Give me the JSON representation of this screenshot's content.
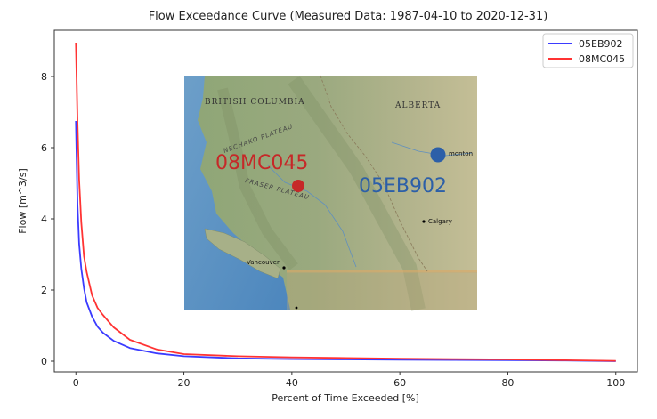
{
  "chart_data": {
    "type": "line",
    "title": "Flow Exceedance Curve (Measured Data: 1987-04-10 to 2020-12-31)",
    "xlabel": "Percent of Time Exceeded [%]",
    "ylabel": "Flow [m^3/s]",
    "xlim": [
      -4,
      104
    ],
    "ylim": [
      -0.3,
      9.3
    ],
    "xticks": [
      0,
      20,
      40,
      60,
      80,
      100
    ],
    "yticks": [
      0,
      2,
      4,
      6,
      8
    ],
    "grid": false,
    "legend": "top-right",
    "series": [
      {
        "name": "05EB902",
        "color": "#3b3bff",
        "x": [
          0,
          0.3,
          0.6,
          1,
          1.5,
          2,
          3,
          4,
          5,
          7,
          10,
          15,
          20,
          30,
          40,
          50,
          60,
          70,
          80,
          90,
          100
        ],
        "y": [
          6.75,
          4.4,
          3.3,
          2.6,
          2.05,
          1.65,
          1.25,
          0.97,
          0.8,
          0.57,
          0.37,
          0.22,
          0.14,
          0.08,
          0.06,
          0.05,
          0.04,
          0.035,
          0.03,
          0.02,
          0.0
        ]
      },
      {
        "name": "08MC045",
        "color": "#ff3333",
        "x": [
          0,
          0.3,
          0.6,
          1,
          1.5,
          2,
          3,
          4,
          5,
          7,
          10,
          15,
          20,
          30,
          40,
          50,
          60,
          70,
          80,
          90,
          100
        ],
        "y": [
          8.95,
          6.7,
          5.1,
          3.9,
          2.95,
          2.5,
          1.85,
          1.5,
          1.3,
          0.95,
          0.6,
          0.33,
          0.2,
          0.14,
          0.11,
          0.09,
          0.07,
          0.06,
          0.05,
          0.03,
          0.01
        ]
      }
    ]
  },
  "inset_map": {
    "labels": {
      "bc": "BRITISH COLUMBIA",
      "ab": "ALBERTA",
      "nechako": "NECHAKO PLATEAU",
      "fraser": "FRASER PLATEAU",
      "vancouver": "Vancouver",
      "calgary": "Calgary",
      "edmonton": "monton"
    },
    "stations": [
      {
        "id": "08MC045",
        "color": "#c62828"
      },
      {
        "id": "05EB902",
        "color": "#2c5fa8"
      }
    ]
  }
}
